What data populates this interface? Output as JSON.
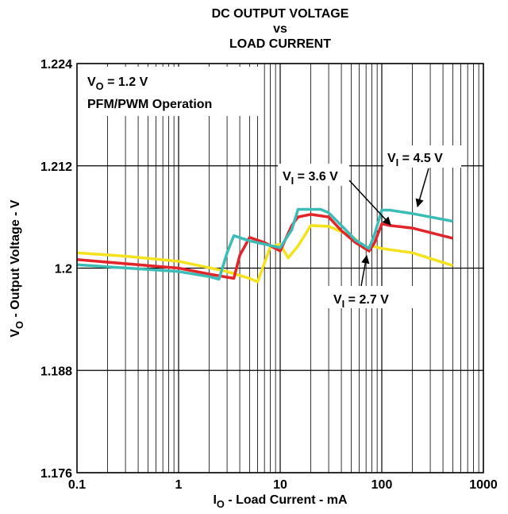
{
  "chart_data": {
    "type": "line",
    "title": [
      "DC OUTPUT VOLTAGE",
      "vs",
      "LOAD CURRENT"
    ],
    "x_label": [
      "I",
      "O",
      " - Load Current - mA"
    ],
    "y_label": [
      "V",
      "O",
      " - Output Voltage - V"
    ],
    "annotations": [
      [
        "V",
        "O",
        " = 1.2 V"
      ],
      "PFM/PWM Operation"
    ],
    "xscale": "log",
    "minor_grid": true,
    "grid": true,
    "xlim": [
      0.1,
      1000
    ],
    "xticks": [
      0.1,
      1,
      10,
      100,
      1000
    ],
    "ylim": [
      1.176,
      1.224
    ],
    "yticks": [
      1.176,
      1.188,
      1.2,
      1.212,
      1.224
    ],
    "series": [
      {
        "name": [
          "V",
          "I",
          " = 2.7 V"
        ],
        "color": "#f3e21c",
        "x": [
          0.1,
          0.3,
          1,
          3,
          5,
          6,
          8,
          10,
          12,
          15,
          20,
          30,
          50,
          60,
          70,
          80,
          100,
          200,
          500
        ],
        "values": [
          1.2018,
          1.2014,
          1.2008,
          1.1996,
          1.1988,
          1.1984,
          1.2025,
          1.2028,
          1.2012,
          1.2026,
          1.205,
          1.2049,
          1.2038,
          1.203,
          1.2024,
          1.2026,
          1.2023,
          1.2018,
          1.2003
        ]
      },
      {
        "name": [
          "V",
          "I",
          " = 3.6 V"
        ],
        "color": "#e2242b",
        "x": [
          0.1,
          1,
          2,
          3.5,
          4,
          5,
          7,
          10,
          13,
          15,
          20,
          30,
          40,
          55,
          75,
          85,
          100,
          120,
          200,
          500
        ],
        "values": [
          1.201,
          1.2,
          1.1993,
          1.1988,
          1.2015,
          1.2036,
          1.203,
          1.202,
          1.205,
          1.206,
          1.2063,
          1.206,
          1.2044,
          1.203,
          1.202,
          1.203,
          1.2052,
          1.205,
          1.2047,
          1.2035
        ]
      },
      {
        "name": [
          "V",
          "I",
          " = 4.5 V"
        ],
        "color": "#3cbcb7",
        "x": [
          0.1,
          1,
          2,
          2.5,
          3,
          3.5,
          5,
          10,
          13,
          15,
          25,
          30,
          40,
          55,
          75,
          85,
          100,
          120,
          200,
          500
        ],
        "values": [
          1.2004,
          1.1996,
          1.199,
          1.1987,
          1.2018,
          1.2038,
          1.2032,
          1.2024,
          1.2045,
          1.2069,
          1.2069,
          1.2065,
          1.205,
          1.2033,
          1.2023,
          1.204,
          1.2068,
          1.2068,
          1.2064,
          1.2055
        ]
      }
    ]
  }
}
